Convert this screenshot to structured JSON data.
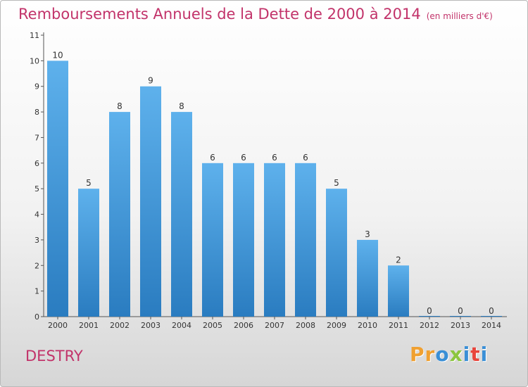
{
  "header": {
    "title": "Remboursements Annuels de la Dette de 2000 à 2014",
    "subtitle": "(en milliers d'€)"
  },
  "footer": {
    "commune": "DESTRY",
    "logo_letters": [
      "P",
      "r",
      "o",
      "x",
      "i",
      "t",
      "i"
    ]
  },
  "colors": {
    "title": "#c2336a",
    "bar_top": "#5eb1ec",
    "bar_bottom": "#2a7cc0",
    "logo": [
      "#f0a030",
      "#f0a030",
      "#3a8fd6",
      "#8cc63f",
      "#3a8fd6",
      "#e8453c",
      "#3a8fd6"
    ]
  },
  "chart_data": {
    "type": "bar",
    "categories": [
      "2000",
      "2001",
      "2002",
      "2003",
      "2004",
      "2005",
      "2006",
      "2007",
      "2008",
      "2009",
      "2010",
      "2011",
      "2012",
      "2013",
      "2014"
    ],
    "values": [
      10,
      5,
      8,
      9,
      8,
      6,
      6,
      6,
      6,
      5,
      3,
      2,
      0,
      0,
      0
    ],
    "data_labels": [
      "10",
      "5",
      "8",
      "9",
      "8",
      "6",
      "6",
      "6",
      "6",
      "5",
      "3",
      "2",
      "0",
      "0",
      "0"
    ],
    "yticks": [
      "0",
      "1",
      "2",
      "3",
      "4",
      "5",
      "6",
      "7",
      "8",
      "9",
      "10",
      "11"
    ],
    "ylim": [
      0,
      11
    ],
    "grid": false,
    "legend": "none"
  }
}
